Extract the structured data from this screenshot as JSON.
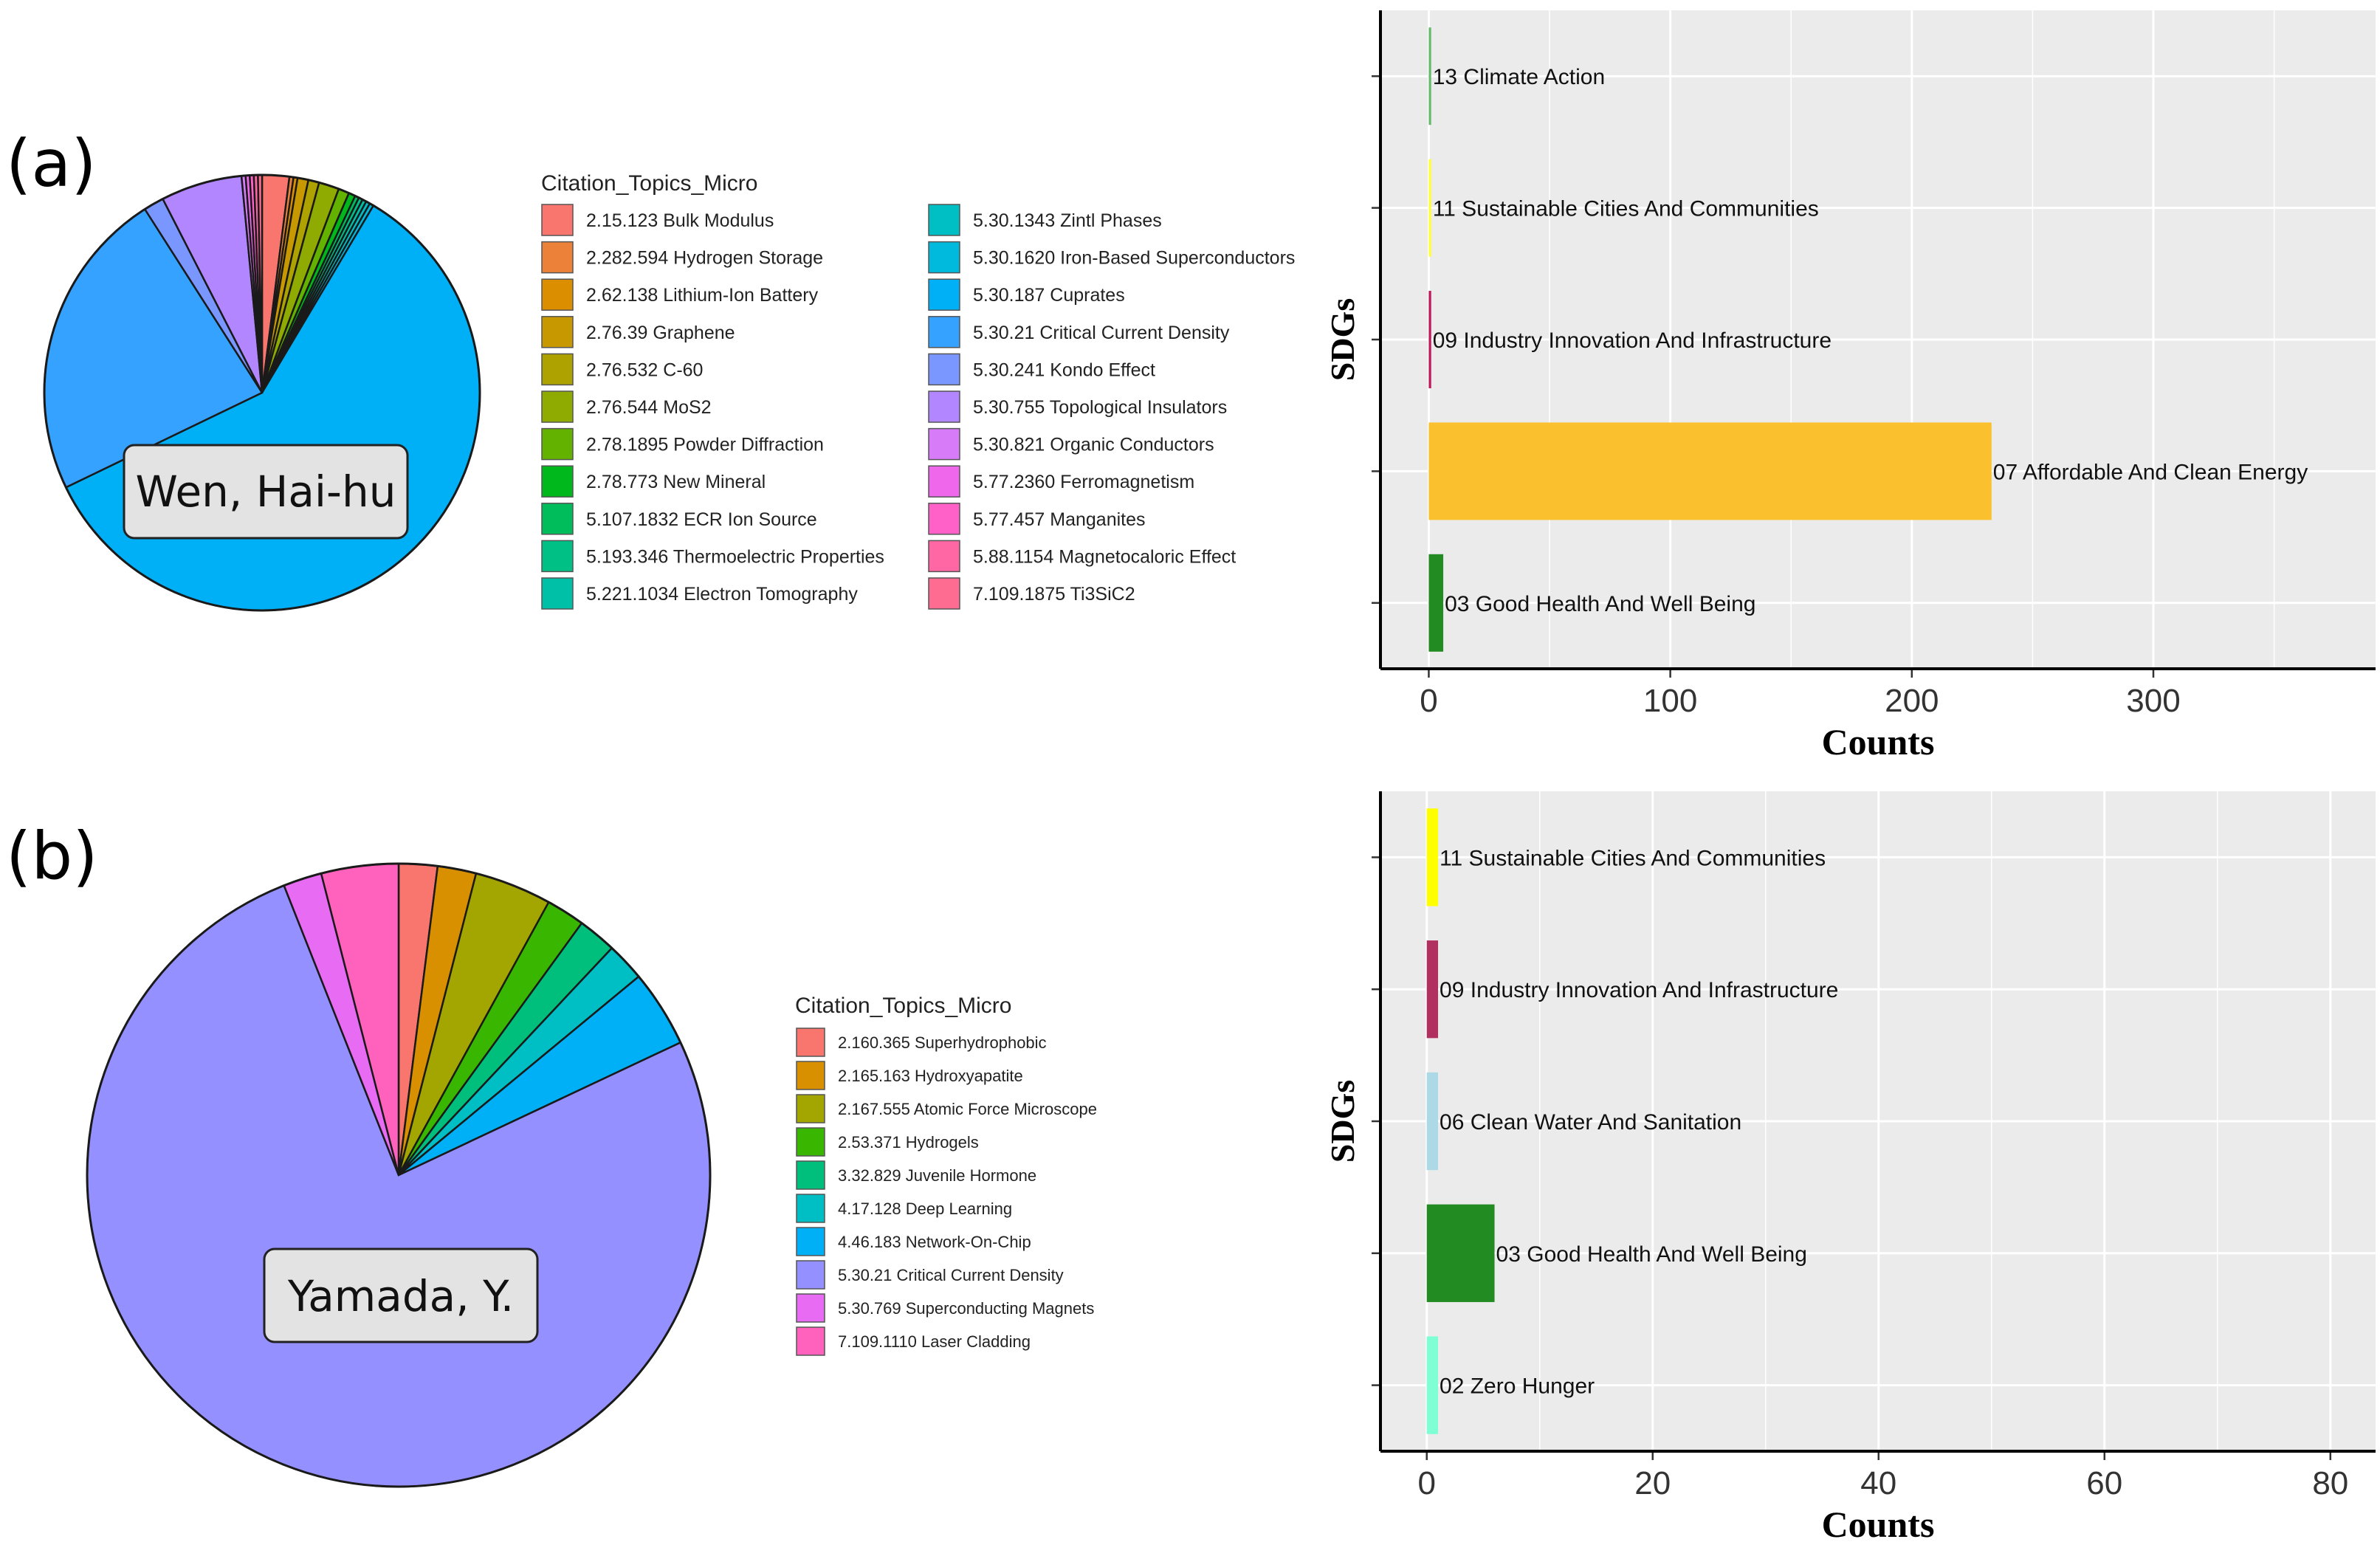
{
  "colors": {
    "panel_bg": "#EBEBEB",
    "grid": "#FFFFFF",
    "box_fill": "#E3E3E3"
  },
  "chart_data": [
    {
      "type": "pie",
      "panel": "(a)",
      "name_label": "Wen, Hai-hu",
      "legend_title": "Citation_Topics_Micro",
      "slices": [
        {
          "label": "2.15.123 Bulk Modulus",
          "value": 2.0,
          "color": "#F8766D"
        },
        {
          "label": "2.282.594 Hydrogen Storage",
          "value": 0.3,
          "color": "#EC8239"
        },
        {
          "label": "2.62.138 Lithium-Ion Battery",
          "value": 0.3,
          "color": "#DB8E00"
        },
        {
          "label": "2.76.39 Graphene",
          "value": 0.8,
          "color": "#C79800"
        },
        {
          "label": "2.76.532 C-60",
          "value": 0.8,
          "color": "#AEA200"
        },
        {
          "label": "2.76.544 MoS2",
          "value": 1.5,
          "color": "#8FAA00"
        },
        {
          "label": "2.78.1895 Powder Diffraction",
          "value": 0.8,
          "color": "#64B200"
        },
        {
          "label": "2.78.773 New Mineral",
          "value": 0.5,
          "color": "#00B81B"
        },
        {
          "label": "5.107.1832 ECR Ion Source",
          "value": 0.3,
          "color": "#00BD5C"
        },
        {
          "label": "5.193.346 Thermoelectric Properties",
          "value": 0.3,
          "color": "#00C085"
        },
        {
          "label": "5.221.1034 Electron Tomography",
          "value": 0.3,
          "color": "#00C1A7"
        },
        {
          "label": "5.30.1343 Zintl Phases",
          "value": 0.3,
          "color": "#00BFC4"
        },
        {
          "label": "5.30.1620 Iron-Based Superconductors",
          "value": 0.3,
          "color": "#00BADE"
        },
        {
          "label": "5.30.187 Cuprates",
          "value": 59.0,
          "color": "#00B0F6"
        },
        {
          "label": "5.30.21 Critical Current Density",
          "value": 23.0,
          "color": "#35A2FF"
        },
        {
          "label": "5.30.241 Kondo Effect",
          "value": 1.5,
          "color": "#7997FF"
        },
        {
          "label": "5.30.755 Topological Insulators",
          "value": 6.0,
          "color": "#B186FF"
        },
        {
          "label": "5.30.821 Organic Conductors",
          "value": 0.3,
          "color": "#D77BF9"
        },
        {
          "label": "5.77.2360 Ferromagnetism",
          "value": 0.3,
          "color": "#EF67EB"
        },
        {
          "label": "5.77.457 Manganites",
          "value": 0.3,
          "color": "#FF61C9"
        },
        {
          "label": "5.88.1154 Magnetocaloric Effect",
          "value": 0.3,
          "color": "#FF67A4"
        },
        {
          "label": "7.109.1875 Ti3SiC2",
          "value": 0.3,
          "color": "#FF6C91"
        }
      ]
    },
    {
      "type": "bar",
      "orientation": "horizontal",
      "panel": "(a)",
      "xlabel": "Counts",
      "ylabel": "SDGs",
      "xlim": [
        -20,
        392
      ],
      "ticks": [
        0,
        100,
        200,
        300
      ],
      "categories": [
        "03 Good Health And Well Being",
        "07 Affordable And Clean Energy",
        "09 Industry Innovation And Infrastructure",
        "11 Sustainable Cities And Communities",
        "13 Climate Action"
      ],
      "values": [
        6,
        233,
        1,
        1,
        1
      ],
      "colors": [
        "#228B22",
        "#FBC02D",
        "#C2185B",
        "#FFFF33",
        "#66BB6A"
      ]
    },
    {
      "type": "pie",
      "panel": "(b)",
      "name_label": "Yamada, Y.",
      "legend_title": "Citation_Topics_Micro",
      "slices": [
        {
          "label": "2.160.365 Superhydrophobic",
          "value": 2.0,
          "color": "#F8766D"
        },
        {
          "label": "2.165.163 Hydroxyapatite",
          "value": 2.0,
          "color": "#D89000"
        },
        {
          "label": "2.167.555 Atomic Force Microscope",
          "value": 4.0,
          "color": "#A3A500"
        },
        {
          "label": "2.53.371 Hydrogels",
          "value": 2.0,
          "color": "#39B600"
        },
        {
          "label": "3.32.829 Juvenile Hormone",
          "value": 2.0,
          "color": "#00BF7D"
        },
        {
          "label": "4.17.128 Deep Learning",
          "value": 2.0,
          "color": "#00BFC4"
        },
        {
          "label": "4.46.183 Network-On-Chip",
          "value": 4.0,
          "color": "#00B0F6"
        },
        {
          "label": "5.30.21 Critical Current Density",
          "value": 76.0,
          "color": "#9590FF"
        },
        {
          "label": "5.30.769 Superconducting Magnets",
          "value": 2.0,
          "color": "#E76BF3"
        },
        {
          "label": "7.109.1110 Laser Cladding",
          "value": 4.0,
          "color": "#FF62BC"
        }
      ]
    },
    {
      "type": "bar",
      "orientation": "horizontal",
      "panel": "(b)",
      "xlabel": "Counts",
      "ylabel": "SDGs",
      "xlim": [
        -4.1,
        84
      ],
      "ticks": [
        0,
        20,
        40,
        60,
        80
      ],
      "categories": [
        "02 Zero Hunger",
        "03 Good Health And Well Being",
        "06 Clean Water And Sanitation",
        "09 Industry Innovation And Infrastructure",
        "11 Sustainable Cities And Communities"
      ],
      "values": [
        1,
        6,
        1,
        1,
        1
      ],
      "colors": [
        "#7FFFD4",
        "#228B22",
        "#ADD8E6",
        "#B03060",
        "#FFFF00"
      ]
    }
  ]
}
